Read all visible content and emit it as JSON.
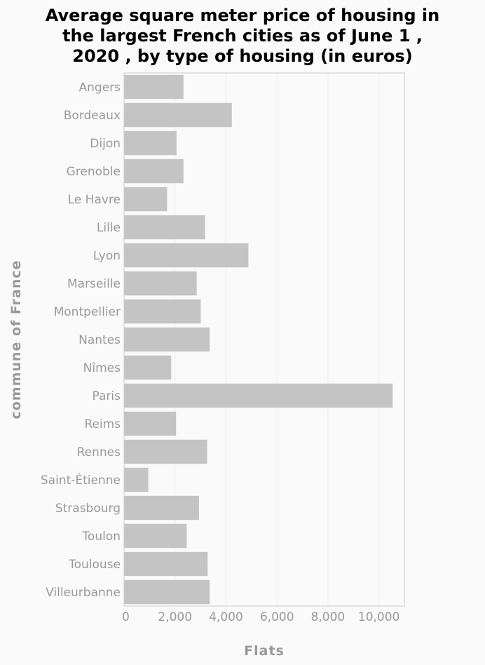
{
  "chart_data": {
    "type": "bar",
    "orientation": "horizontal",
    "title_lines": [
      "Average square meter price of housing in",
      "the largest French cities as of June 1 ,",
      "2020 , by type of housing (in euros)"
    ],
    "xlabel": "Flats",
    "ylabel": "commune of France",
    "xlim": [
      0,
      11000
    ],
    "xticks": [
      0,
      2000,
      4000,
      6000,
      8000,
      10000
    ],
    "xtick_labels": [
      "0",
      "2,000",
      "4,000",
      "6,000",
      "8,000",
      "10,000"
    ],
    "grid": true,
    "categories": [
      "Angers",
      "Bordeaux",
      "Dijon",
      "Grenoble",
      "Le Havre",
      "Lille",
      "Lyon",
      "Marseille",
      "Montpellier",
      "Nantes",
      "Nîmes",
      "Paris",
      "Reims",
      "Rennes",
      "Saint-Étienne",
      "Strasbourg",
      "Toulon",
      "Toulouse",
      "Villeurbanne"
    ],
    "values": [
      2330,
      4230,
      2060,
      2330,
      1690,
      3180,
      4880,
      2850,
      3010,
      3360,
      1850,
      10540,
      2040,
      3260,
      950,
      2940,
      2460,
      3280,
      3360
    ],
    "bar_color": "#c4c4c4"
  }
}
